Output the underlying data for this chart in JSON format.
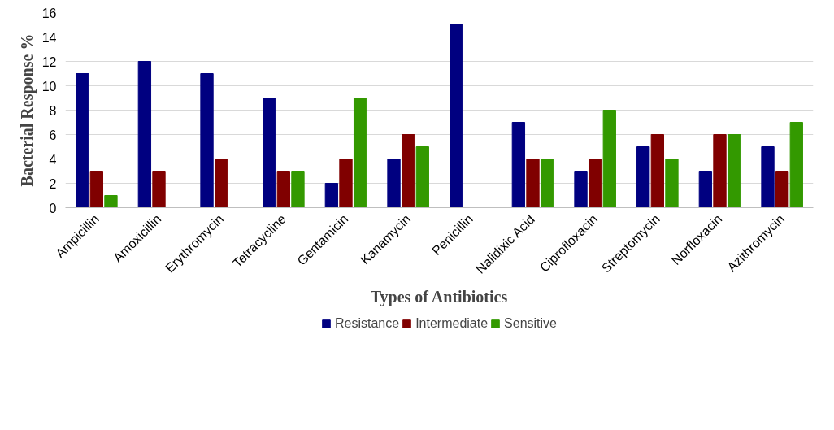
{
  "chart_data": {
    "type": "bar",
    "xlabel": "Types of Antibiotics",
    "ylabel": "Bacterial Response %",
    "categories": [
      "Ampicillin",
      "Amoxicillin",
      "Erythromycin",
      "Tetracycline",
      "Gentamicin",
      "Kanamycin",
      "Penicillin",
      "Nalidixic Acid",
      "Ciprofloxacin",
      "Streptomycin",
      "Norfloxacin",
      "Azithromycin"
    ],
    "series": [
      {
        "name": "Resistance",
        "color": "#000080",
        "values": [
          11,
          12,
          11,
          9,
          2,
          4,
          15,
          7,
          3,
          5,
          3,
          5
        ]
      },
      {
        "name": "Intermediate",
        "color": "#800000",
        "values": [
          3,
          3,
          4,
          3,
          4,
          6,
          0,
          4,
          4,
          6,
          6,
          3
        ]
      },
      {
        "name": "Sensitive",
        "color": "#339900",
        "values": [
          1,
          0,
          0,
          3,
          9,
          5,
          0,
          4,
          8,
          4,
          6,
          7
        ]
      }
    ],
    "ylim": [
      0,
      16
    ],
    "yticks": [
      0,
      2,
      4,
      6,
      8,
      10,
      12,
      14,
      16
    ],
    "grid": "y",
    "legend": "bottom"
  }
}
